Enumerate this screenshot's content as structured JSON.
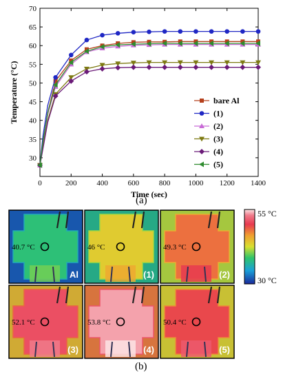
{
  "chart_data": {
    "type": "line",
    "xlabel": "Time (sec)",
    "ylabel": "Temperature (°C)",
    "xlim": [
      0,
      1400
    ],
    "ylim": [
      25,
      70
    ],
    "xticks": [
      0,
      200,
      400,
      600,
      800,
      1000,
      1200,
      1400
    ],
    "yticks": [
      30,
      35,
      40,
      45,
      50,
      55,
      60,
      65,
      70
    ],
    "legend_position": "right",
    "grid": false,
    "x": [
      0,
      20,
      50,
      100,
      200,
      300,
      400,
      500,
      600,
      700,
      800,
      900,
      1000,
      1100,
      1200,
      1300,
      1400
    ],
    "series": [
      {
        "name": "bare Al",
        "color": "#b5401c",
        "marker": "square",
        "values": [
          28,
          34,
          42,
          50.5,
          56,
          59,
          60,
          60.6,
          60.9,
          61,
          61,
          61.1,
          61.1,
          61.1,
          61.1,
          61.1,
          61.1
        ]
      },
      {
        "name": "(1)",
        "color": "#1f27c4",
        "marker": "circle",
        "values": [
          28,
          36,
          44,
          51.5,
          57.5,
          61.5,
          62.8,
          63.3,
          63.6,
          63.7,
          63.8,
          63.8,
          63.8,
          63.8,
          63.8,
          63.8,
          63.8
        ]
      },
      {
        "name": "(2)",
        "color": "#c86ad6",
        "marker": "triangle-up",
        "values": [
          28,
          34,
          41.5,
          49,
          55,
          58.3,
          59.3,
          59.8,
          60.1,
          60.2,
          60.3,
          60.3,
          60.3,
          60.3,
          60.3,
          60.3,
          60.3
        ]
      },
      {
        "name": "(3)",
        "color": "#7d7a12",
        "marker": "triangle-down",
        "values": [
          28,
          33,
          40,
          47,
          51.5,
          53.8,
          54.8,
          55.2,
          55.4,
          55.5,
          55.5,
          55.5,
          55.5,
          55.5,
          55.5,
          55.5,
          55.5
        ]
      },
      {
        "name": "(4)",
        "color": "#6a1a78",
        "marker": "diamond",
        "values": [
          28,
          32.5,
          39.5,
          46.5,
          50.5,
          53,
          53.8,
          54.1,
          54.2,
          54.2,
          54.2,
          54.2,
          54.2,
          54.2,
          54.2,
          54.2,
          54.2
        ]
      },
      {
        "name": "(5)",
        "color": "#2e8b2e",
        "marker": "triangle-left",
        "values": [
          28,
          34.5,
          42,
          49.5,
          55.5,
          58.5,
          59.7,
          60.2,
          60.4,
          60.5,
          60.6,
          60.6,
          60.6,
          60.6,
          60.6,
          60.6,
          60.6
        ]
      }
    ]
  },
  "caption_a": "(a)",
  "caption_b": "(b)",
  "thermal_panels": [
    {
      "temp": "40.7 °C",
      "label": "Al",
      "heat": 0.33
    },
    {
      "temp": "46 °C",
      "label": "(1)",
      "heat": 0.55
    },
    {
      "temp": "49.3 °C",
      "label": "(2)",
      "heat": 0.72
    },
    {
      "temp": "52.1 °C",
      "label": "(3)",
      "heat": 0.84
    },
    {
      "temp": "53.8 °C",
      "label": "(4)",
      "heat": 0.95
    },
    {
      "temp": "50.4 °C",
      "label": "(5)",
      "heat": 0.78
    }
  ],
  "colorbar": {
    "max_label": "55 °C",
    "min_label": "30 °C"
  }
}
